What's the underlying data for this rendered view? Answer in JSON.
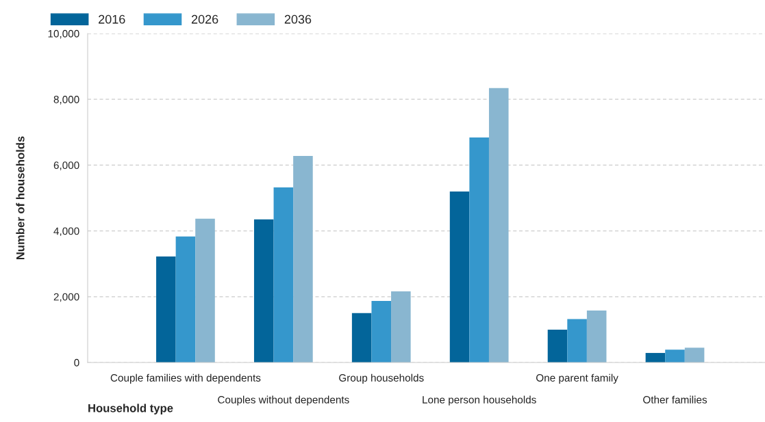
{
  "chart_data": {
    "type": "bar",
    "xlabel": "Household type",
    "ylabel": "Number of households",
    "categories": [
      "Couple families with dependents",
      "Couples without dependents",
      "Group households",
      "Lone person households",
      "One parent family",
      "Other families"
    ],
    "series": [
      {
        "name": "2016",
        "color": "#03659a",
        "values": [
          3220,
          4350,
          1500,
          5200,
          1000,
          290
        ]
      },
      {
        "name": "2026",
        "color": "#3597cc",
        "values": [
          3830,
          5320,
          1870,
          6840,
          1320,
          390
        ]
      },
      {
        "name": "2036",
        "color": "#89b6d0",
        "values": [
          4370,
          6280,
          2160,
          8340,
          1580,
          450
        ]
      }
    ],
    "ylim": [
      0,
      10000
    ],
    "yticks": [
      {
        "value": 0,
        "label": "0"
      },
      {
        "value": 2000,
        "label": "2,000"
      },
      {
        "value": 4000,
        "label": "4,000"
      },
      {
        "value": 6000,
        "label": "6,000"
      },
      {
        "value": 8000,
        "label": "8,000"
      },
      {
        "value": 10000,
        "label": "10,000"
      }
    ],
    "grid": "y",
    "legend": "top left"
  }
}
